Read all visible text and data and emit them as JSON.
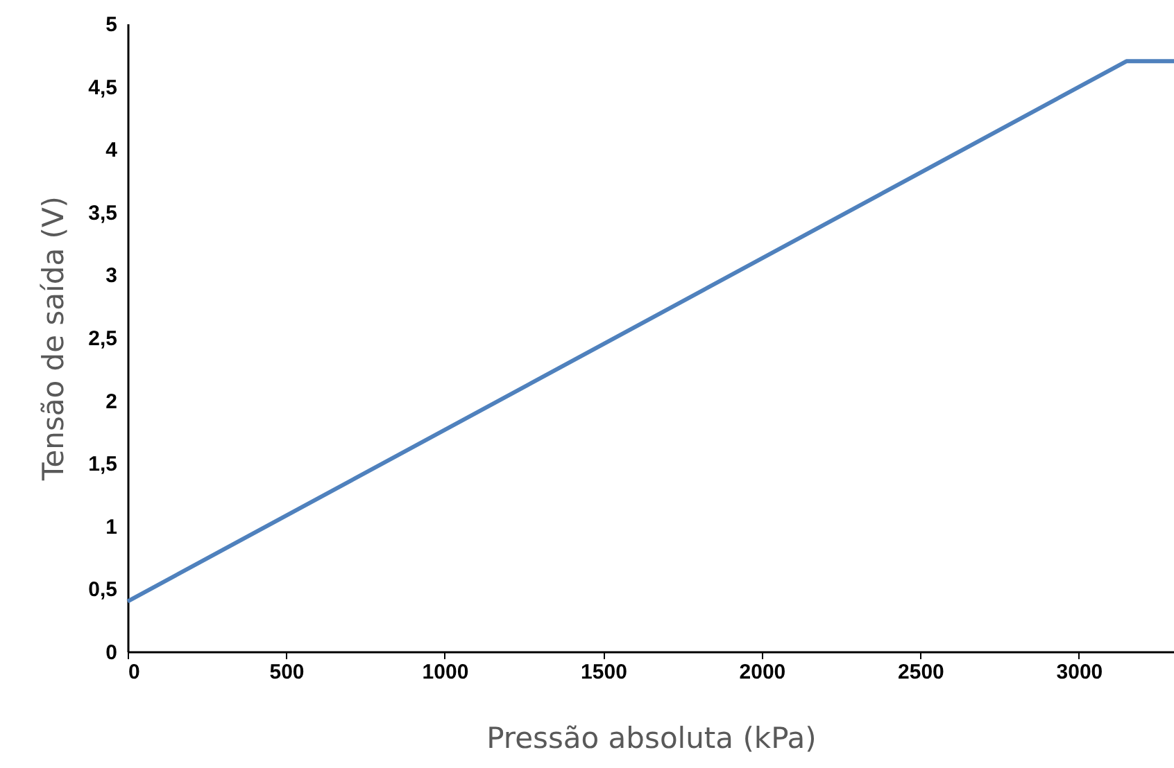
{
  "chart_data": {
    "type": "line",
    "xlabel": "Pressão absoluta (kPa)",
    "ylabel": "Tensão de saída (V)",
    "x": [
      0,
      3150,
      3300
    ],
    "series": [
      {
        "color": "#4f81bd",
        "values": [
          0.4,
          4.7,
          4.7
        ]
      }
    ],
    "xlim": [
      0,
      3300
    ],
    "xticks": [
      0,
      500,
      1000,
      1500,
      2000,
      2500,
      3000
    ],
    "ylim": [
      0,
      5
    ],
    "yticks": [
      0,
      {
        "value": 0.5,
        "label": "0,5"
      },
      1,
      {
        "value": 1.5,
        "label": "1,5"
      },
      2,
      {
        "value": 2.5,
        "label": "2,5"
      },
      3,
      {
        "value": 3.5,
        "label": "3,5"
      },
      4,
      {
        "value": 4.5,
        "label": "4,5"
      },
      5
    ],
    "grid": false,
    "marker": "none",
    "line_style": "solid"
  }
}
